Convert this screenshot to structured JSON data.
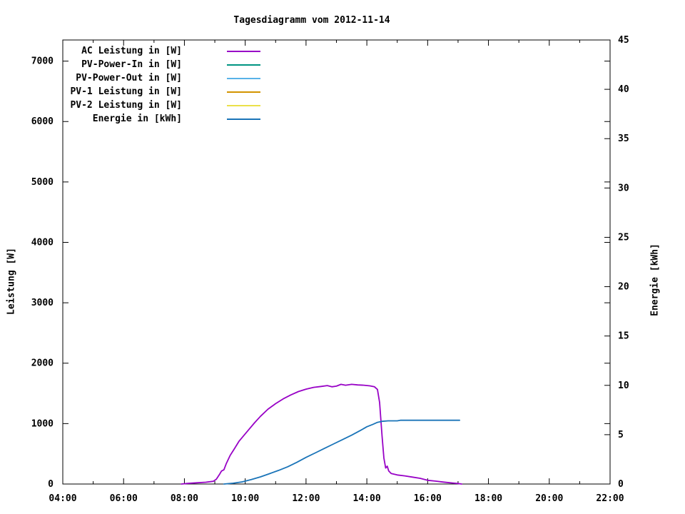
{
  "chart_data": {
    "type": "line",
    "title": "Tagesdiagramm vom 2012-11-14",
    "grid": false,
    "plot_background": "#ffffff",
    "border_color": "#000000",
    "legend_position": "top-left-inside",
    "x_axis": {
      "label": "",
      "range_hours": [
        4,
        22
      ],
      "tick_labels": [
        "04:00",
        "06:00",
        "08:00",
        "10:00",
        "12:00",
        "14:00",
        "16:00",
        "18:00",
        "20:00",
        "22:00"
      ],
      "minor_tick_every_hours": 1
    },
    "y_left": {
      "label": "Leistung [W]",
      "range": [
        0,
        7350
      ],
      "ticks": [
        0,
        1000,
        2000,
        3000,
        4000,
        5000,
        6000,
        7000
      ]
    },
    "y_right": {
      "label": "Energie [kWh]",
      "range": [
        0,
        45
      ],
      "ticks": [
        0,
        5,
        10,
        15,
        20,
        25,
        30,
        35,
        40,
        45
      ]
    },
    "legend": [
      {
        "label": "AC Leistung in [W]",
        "color": "#9802C6"
      },
      {
        "label": "PV-Power-In in [W]",
        "color": "#009482"
      },
      {
        "label": "PV-Power-Out in [W]",
        "color": "#58B2E8"
      },
      {
        "label": "PV-1 Leistung in [W]",
        "color": "#D39400"
      },
      {
        "label": "PV-2 Leistung in [W]",
        "color": "#EBE04A"
      },
      {
        "label": "Energie in [kWh]",
        "color": "#1A74B8"
      }
    ],
    "series": [
      {
        "id": "ac-leistung",
        "name": "AC Leistung in [W]",
        "axis": "left",
        "color": "#9802C6",
        "visible": true,
        "points": [
          [
            7.9,
            0
          ],
          [
            8.1,
            10
          ],
          [
            8.4,
            20
          ],
          [
            8.7,
            30
          ],
          [
            8.95,
            45
          ],
          [
            9.05,
            80
          ],
          [
            9.15,
            155
          ],
          [
            9.22,
            215
          ],
          [
            9.3,
            235
          ],
          [
            9.38,
            340
          ],
          [
            9.5,
            470
          ],
          [
            9.65,
            590
          ],
          [
            9.8,
            710
          ],
          [
            9.95,
            800
          ],
          [
            10.1,
            890
          ],
          [
            10.3,
            1010
          ],
          [
            10.5,
            1120
          ],
          [
            10.75,
            1240
          ],
          [
            11.0,
            1330
          ],
          [
            11.25,
            1410
          ],
          [
            11.5,
            1475
          ],
          [
            11.75,
            1530
          ],
          [
            12.0,
            1570
          ],
          [
            12.25,
            1600
          ],
          [
            12.5,
            1615
          ],
          [
            12.7,
            1630
          ],
          [
            12.85,
            1610
          ],
          [
            13.0,
            1620
          ],
          [
            13.15,
            1650
          ],
          [
            13.3,
            1635
          ],
          [
            13.5,
            1650
          ],
          [
            13.7,
            1640
          ],
          [
            13.9,
            1635
          ],
          [
            14.1,
            1625
          ],
          [
            14.25,
            1610
          ],
          [
            14.35,
            1565
          ],
          [
            14.42,
            1350
          ],
          [
            14.5,
            800
          ],
          [
            14.56,
            430
          ],
          [
            14.62,
            265
          ],
          [
            14.67,
            295
          ],
          [
            14.72,
            215
          ],
          [
            14.8,
            175
          ],
          [
            15.0,
            150
          ],
          [
            15.25,
            135
          ],
          [
            15.5,
            115
          ],
          [
            15.75,
            95
          ],
          [
            16.0,
            62
          ],
          [
            16.25,
            48
          ],
          [
            16.5,
            33
          ],
          [
            16.75,
            20
          ],
          [
            17.0,
            8
          ],
          [
            17.12,
            0
          ]
        ]
      },
      {
        "id": "pv-power-in",
        "name": "PV-Power-In in [W]",
        "axis": "left",
        "color": "#009482",
        "visible": false,
        "points": []
      },
      {
        "id": "pv-power-out",
        "name": "PV-Power-Out in [W]",
        "axis": "left",
        "color": "#58B2E8",
        "visible": false,
        "points": []
      },
      {
        "id": "pv1-leistung",
        "name": "PV-1 Leistung in [W]",
        "axis": "left",
        "color": "#D39400",
        "visible": false,
        "points": []
      },
      {
        "id": "pv2-leistung",
        "name": "PV-2 Leistung in [W]",
        "axis": "left",
        "color": "#EBE04A",
        "visible": false,
        "points": []
      },
      {
        "id": "energie",
        "name": "Energie in [kWh]",
        "axis": "right",
        "color": "#1A74B8",
        "visible": true,
        "points": [
          [
            9.3,
            0
          ],
          [
            9.6,
            0.08
          ],
          [
            9.9,
            0.22
          ],
          [
            10.2,
            0.45
          ],
          [
            10.5,
            0.72
          ],
          [
            10.8,
            1.05
          ],
          [
            11.1,
            1.38
          ],
          [
            11.4,
            1.75
          ],
          [
            11.7,
            2.2
          ],
          [
            12.0,
            2.7
          ],
          [
            12.3,
            3.15
          ],
          [
            12.6,
            3.6
          ],
          [
            12.9,
            4.05
          ],
          [
            13.2,
            4.5
          ],
          [
            13.5,
            4.95
          ],
          [
            13.8,
            5.45
          ],
          [
            14.0,
            5.8
          ],
          [
            14.2,
            6.05
          ],
          [
            14.35,
            6.25
          ],
          [
            14.5,
            6.35
          ],
          [
            14.7,
            6.4
          ],
          [
            15.0,
            6.4
          ],
          [
            15.1,
            6.46
          ],
          [
            17.05,
            6.46
          ]
        ]
      }
    ],
    "annotations": {
      "ac_peak_watts": 1650,
      "ac_peak_time": "13:10",
      "energy_total_kwh": 6.5,
      "production_window": "08:00 - 17:10"
    }
  }
}
